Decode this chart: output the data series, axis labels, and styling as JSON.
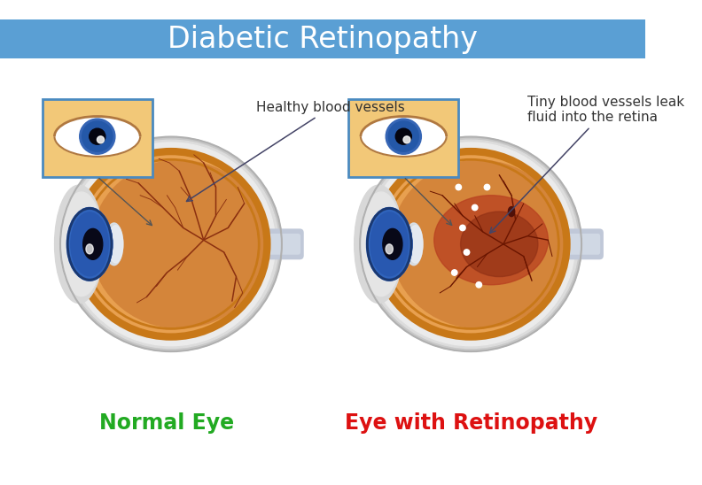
{
  "title": "Diabetic Retinopathy",
  "title_bg_color": "#5a9fd4",
  "title_text_color": "#ffffff",
  "bg_color": "#ffffff",
  "label_normal": "Normal Eye",
  "label_normal_color": "#22aa22",
  "label_retinopathy": "Eye with Retinopathy",
  "label_retinopathy_color": "#dd1111",
  "annotation_normal": "Healthy blood vessels",
  "annotation_retinopathy": "Tiny blood vessels leak\nfluid into the retina",
  "annotation_color": "#333333",
  "vessel_color": "#8b3010",
  "thumbnail_bg": "#f2c878",
  "thumbnail_border": "#4a8ac0",
  "sclera_outer": "#d0d0d0",
  "sclera_inner": "#e8e8e8",
  "retina_orange": "#d4853a",
  "retina_light": "#e8a050",
  "retina_ring": "#c87818",
  "optic_disc": "#c87020",
  "cornea_blue": "#4070c0",
  "iris_blue": "#2a5ab0",
  "pupil_dark": "#080818",
  "lens_white": "#d8e4f0",
  "damage_red": "#b84020",
  "damage_dark": "#903015"
}
